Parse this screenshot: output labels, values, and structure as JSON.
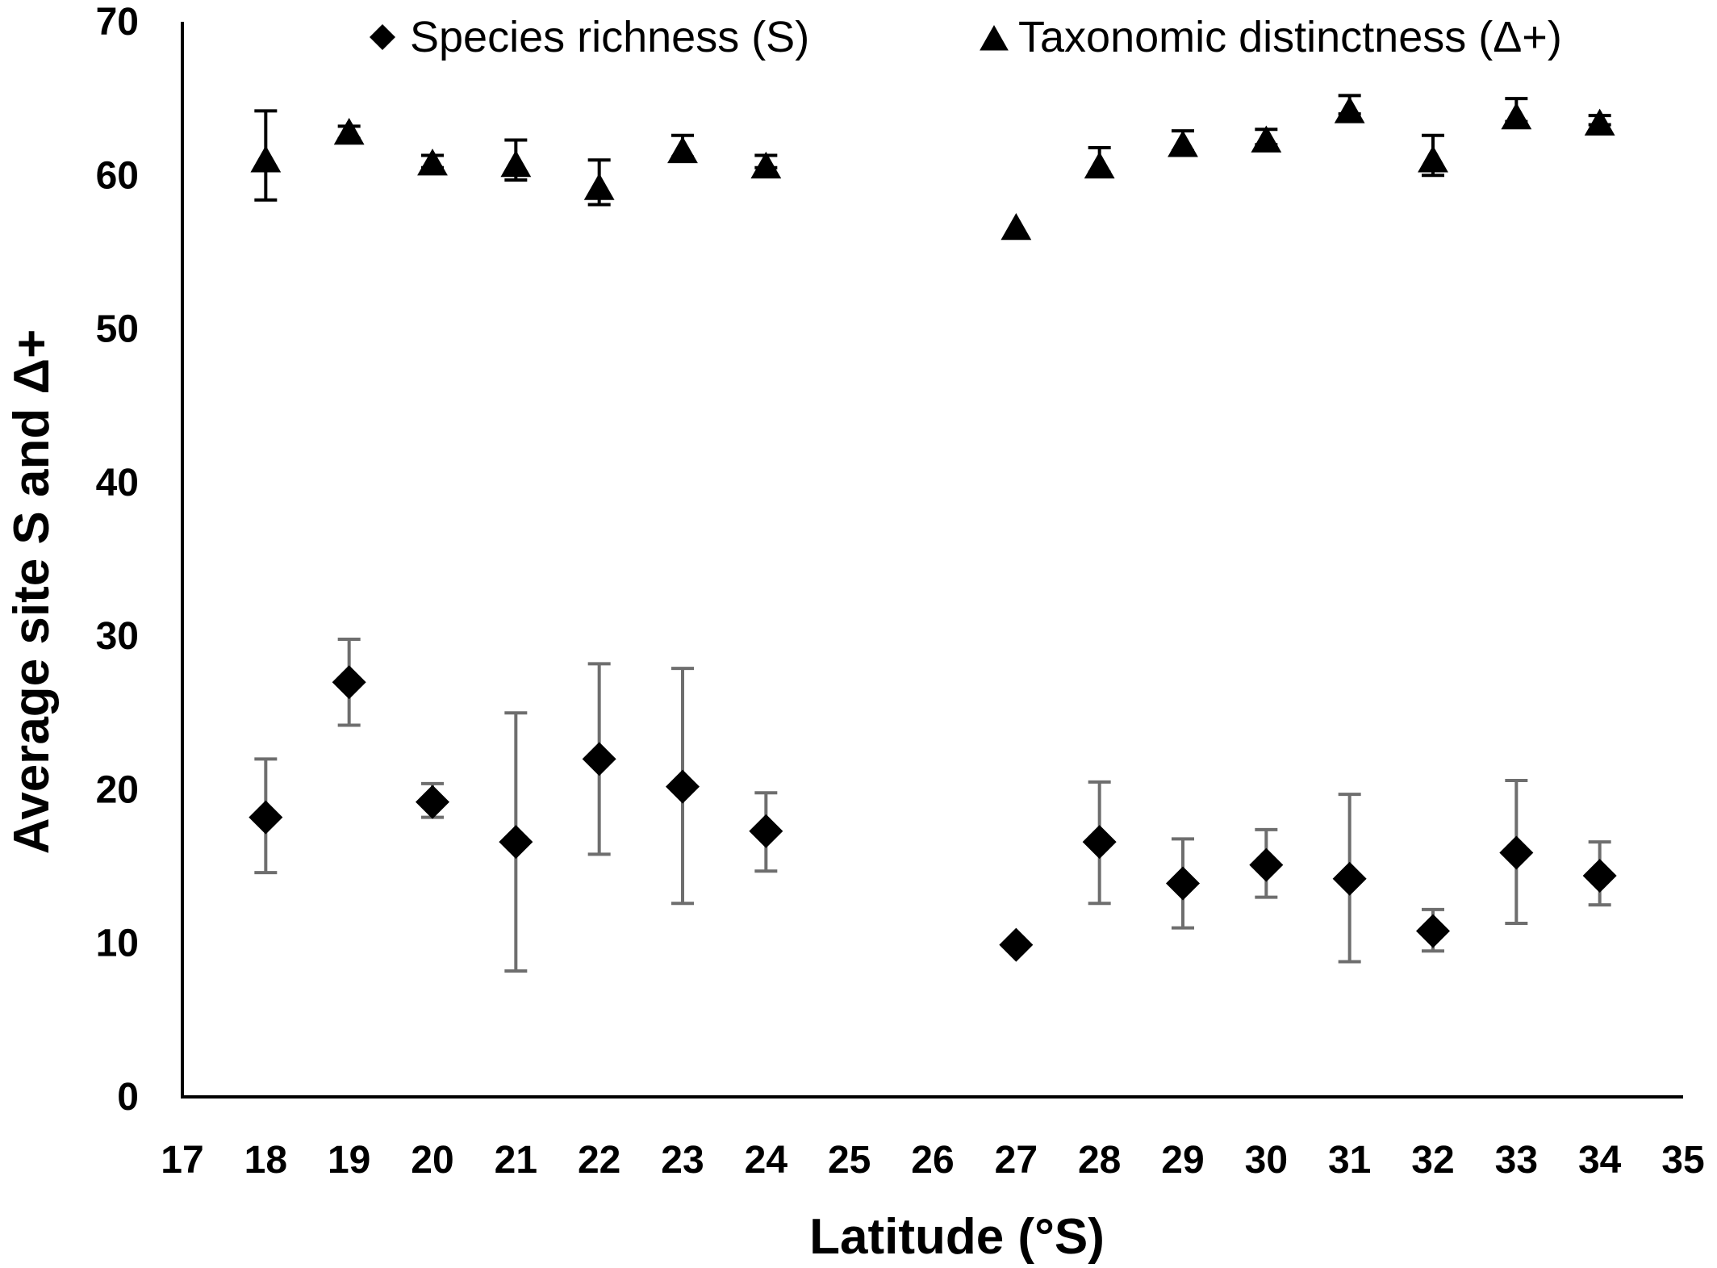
{
  "chart_data": {
    "type": "scatter",
    "title": "",
    "xlabel": "Latitude (°S)",
    "ylabel": "Average site S and Δ+",
    "xlim": [
      17,
      35
    ],
    "ylim": [
      0,
      70
    ],
    "x_ticks": [
      17,
      18,
      19,
      20,
      21,
      22,
      23,
      24,
      25,
      26,
      27,
      28,
      29,
      30,
      31,
      32,
      33,
      34,
      35
    ],
    "y_ticks": [
      0,
      10,
      20,
      30,
      40,
      50,
      60,
      70
    ],
    "grid": false,
    "legend_position": "top",
    "error_bars": true,
    "series": [
      {
        "name": "Species richness (S)",
        "marker": "diamond",
        "color": "#000000",
        "error_color": "#6e6e6e",
        "points": [
          {
            "x": 18,
            "y": 18.2,
            "lo": 14.6,
            "hi": 22.0
          },
          {
            "x": 19,
            "y": 27.0,
            "lo": 24.2,
            "hi": 29.8
          },
          {
            "x": 20,
            "y": 19.2,
            "lo": 18.2,
            "hi": 20.4
          },
          {
            "x": 21,
            "y": 16.6,
            "lo": 8.2,
            "hi": 25.0
          },
          {
            "x": 22,
            "y": 22.0,
            "lo": 15.8,
            "hi": 28.2
          },
          {
            "x": 23,
            "y": 20.2,
            "lo": 12.6,
            "hi": 27.9
          },
          {
            "x": 24,
            "y": 17.3,
            "lo": 14.7,
            "hi": 19.8
          },
          {
            "x": 27,
            "y": 9.9,
            "lo": 9.9,
            "hi": 9.9
          },
          {
            "x": 28,
            "y": 16.6,
            "lo": 12.6,
            "hi": 20.5
          },
          {
            "x": 29,
            "y": 13.9,
            "lo": 11.0,
            "hi": 16.8
          },
          {
            "x": 30,
            "y": 15.1,
            "lo": 13.0,
            "hi": 17.4
          },
          {
            "x": 31,
            "y": 14.2,
            "lo": 8.8,
            "hi": 19.7
          },
          {
            "x": 32,
            "y": 10.8,
            "lo": 9.5,
            "hi": 12.2
          },
          {
            "x": 33,
            "y": 15.9,
            "lo": 11.3,
            "hi": 20.6
          },
          {
            "x": 34,
            "y": 14.4,
            "lo": 12.5,
            "hi": 16.6
          }
        ]
      },
      {
        "name": "Taxonomic distinctness (Δ+)",
        "marker": "triangle",
        "color": "#000000",
        "error_color": "#000000",
        "points": [
          {
            "x": 18,
            "y": 61.0,
            "lo": 58.4,
            "hi": 64.2
          },
          {
            "x": 19,
            "y": 62.8,
            "lo": 62.4,
            "hi": 63.2
          },
          {
            "x": 20,
            "y": 60.8,
            "lo": 60.5,
            "hi": 61.3
          },
          {
            "x": 21,
            "y": 60.7,
            "lo": 59.7,
            "hi": 62.3
          },
          {
            "x": 22,
            "y": 59.2,
            "lo": 58.1,
            "hi": 61.0
          },
          {
            "x": 23,
            "y": 61.6,
            "lo": 61.2,
            "hi": 62.6
          },
          {
            "x": 24,
            "y": 60.6,
            "lo": 60.5,
            "hi": 61.3
          },
          {
            "x": 27,
            "y": 56.6,
            "lo": 56.6,
            "hi": 56.6
          },
          {
            "x": 28,
            "y": 60.6,
            "lo": 60.2,
            "hi": 61.8
          },
          {
            "x": 29,
            "y": 62.0,
            "lo": 61.6,
            "hi": 62.9
          },
          {
            "x": 30,
            "y": 62.3,
            "lo": 62.0,
            "hi": 63.0
          },
          {
            "x": 31,
            "y": 64.2,
            "lo": 64.0,
            "hi": 65.2
          },
          {
            "x": 32,
            "y": 61.0,
            "lo": 60.0,
            "hi": 62.6
          },
          {
            "x": 33,
            "y": 63.8,
            "lo": 63.5,
            "hi": 65.0
          },
          {
            "x": 34,
            "y": 63.4,
            "lo": 63.3,
            "hi": 63.9
          }
        ]
      }
    ]
  }
}
